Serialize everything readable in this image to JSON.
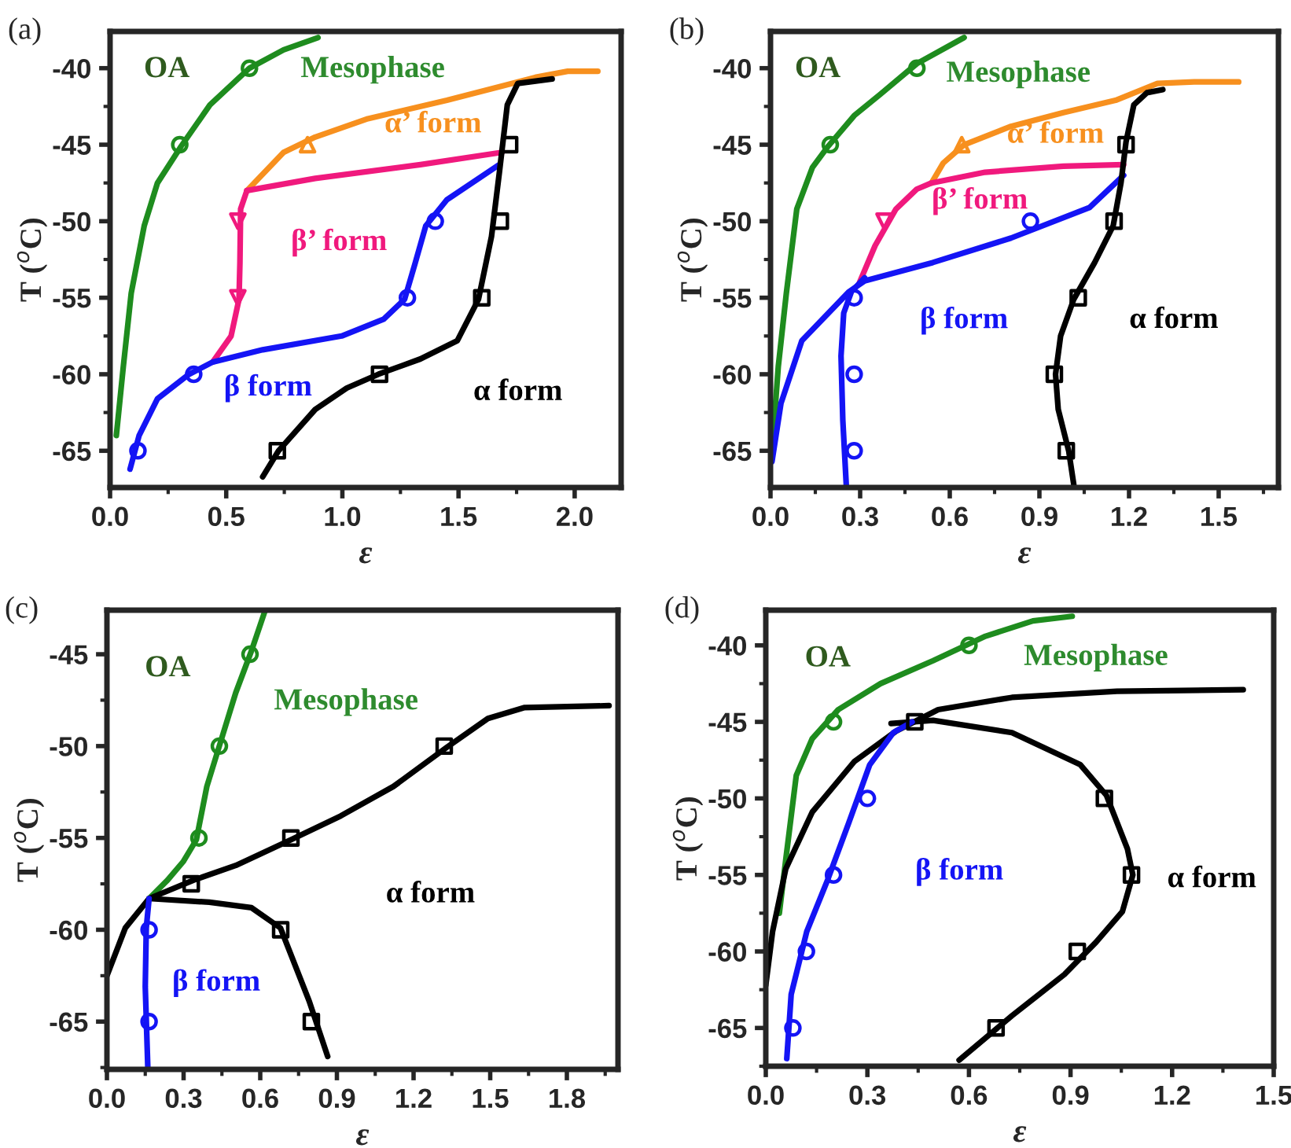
{
  "chart_data": [
    {
      "type": "line",
      "title": "(a)",
      "xlabel": "ε",
      "ylabel": "T ($^{o}$C)",
      "xlim": [
        0,
        2.2
      ],
      "ylim": [
        -67.4,
        -37.6
      ],
      "xticks": [
        {
          "value": 0,
          "label": "0.0"
        },
        0.5,
        {
          "value": 1,
          "label": "1.0"
        },
        1.5,
        {
          "value": 2,
          "label": "2.0"
        }
      ],
      "yticks": [
        -65,
        -60,
        -55,
        -50,
        -45,
        -40
      ],
      "series": [
        {
          "type": "line",
          "color": "#1e8c1e",
          "x": [
            0.027,
            0.057,
            0.091,
            0.147,
            0.204,
            0.306,
            0.43,
            0.6,
            0.747,
            0.895
          ],
          "values": [
            -64.0,
            -59.5,
            -54.7,
            -50.3,
            -47.5,
            -45.1,
            -42.4,
            -40.0,
            -38.8,
            -38.0
          ]
        },
        {
          "type": "scatter",
          "marker": "circle",
          "color": "#1e8c1e",
          "x": [
            0.3,
            0.6
          ],
          "values": [
            -45,
            -40
          ]
        },
        {
          "type": "line",
          "color": "#f7901e",
          "x": [
            0.589,
            0.747,
            0.883,
            1.11,
            1.45,
            1.68,
            1.83,
            1.97,
            2.1
          ],
          "values": [
            -48.0,
            -45.5,
            -44.5,
            -43.3,
            -42.1,
            -41.2,
            -40.6,
            -40.2,
            -40.2
          ]
        },
        {
          "type": "scatter",
          "marker": "triangle",
          "color": "#f7901e",
          "x": [
            0.85
          ],
          "values": [
            -45
          ]
        },
        {
          "type": "line",
          "color": "#f0197d",
          "x": [
            0.589,
            0.883,
            1.336,
            1.687
          ],
          "values": [
            -48.0,
            -47.2,
            -46.3,
            -45.5
          ]
        },
        {
          "type": "line",
          "color": "#f0197d",
          "x": [
            0.589,
            0.562,
            0.559,
            0.555,
            0.521,
            0.442
          ],
          "values": [
            -48.0,
            -49.2,
            -52.7,
            -55.1,
            -57.5,
            -59.2
          ]
        },
        {
          "type": "scatter",
          "marker": "triangle_down",
          "color": "#f0197d",
          "x": [
            0.55,
            0.55
          ],
          "values": [
            -50,
            -55
          ]
        },
        {
          "type": "line",
          "color": "#1414f5",
          "x": [
            0.086,
            0.125,
            0.204,
            0.34,
            0.442,
            0.657,
            0.997,
            1.178,
            1.268,
            1.314,
            1.359,
            1.45,
            1.676
          ],
          "values": [
            -66.2,
            -64.0,
            -61.6,
            -60.0,
            -59.2,
            -58.4,
            -57.5,
            -56.4,
            -55.1,
            -52.7,
            -50.3,
            -48.6,
            -46.3
          ]
        },
        {
          "type": "scatter",
          "marker": "circle",
          "color": "#1414f5",
          "x": [
            0.12,
            0.36,
            1.28,
            1.4
          ],
          "values": [
            -65,
            -60,
            -55,
            -50
          ]
        },
        {
          "type": "line",
          "color": "#000000",
          "x": [
            0.657,
            0.725,
            0.883,
            1.019,
            1.155,
            1.336,
            1.495,
            1.586,
            1.642,
            1.676,
            1.71,
            1.755,
            1.903
          ],
          "values": [
            -66.7,
            -65.0,
            -62.3,
            -60.9,
            -60.0,
            -59.0,
            -57.8,
            -55.1,
            -51.0,
            -46.8,
            -42.4,
            -41.0,
            -40.7
          ]
        },
        {
          "type": "scatter",
          "marker": "square",
          "color": "#000000",
          "x": [
            0.72,
            1.16,
            1.6,
            1.68,
            1.72
          ],
          "values": [
            -65,
            -60,
            -55,
            -50,
            -45
          ]
        }
      ],
      "annotations": [
        "OA",
        "Mesophase",
        "α’ form",
        "β’ form",
        "β form",
        "α form"
      ]
    },
    {
      "type": "line",
      "title": "(b)",
      "xlabel": "ε",
      "ylabel": "T ($^{o}$C)",
      "xlim": [
        0,
        1.7
      ],
      "ylim": [
        -67.4,
        -37.6
      ],
      "xticks": [
        {
          "value": 0,
          "label": "0.0"
        },
        0.3,
        0.6,
        0.9,
        1.2,
        1.5
      ],
      "yticks": [
        -65,
        -60,
        -55,
        -50,
        -45,
        -40
      ],
      "series": [
        {
          "type": "line",
          "color": "#1e8c1e",
          "x": [
            0.009,
            0.026,
            0.053,
            0.088,
            0.14,
            0.193,
            0.28,
            0.368,
            0.49,
            0.648
          ],
          "values": [
            -64.0,
            -59.5,
            -54.7,
            -49.2,
            -46.5,
            -45.1,
            -43.1,
            -41.7,
            -39.7,
            -38.0
          ]
        },
        {
          "type": "scatter",
          "marker": "circle",
          "color": "#1e8c1e",
          "x": [
            0.2,
            0.49
          ],
          "values": [
            -45,
            -40
          ]
        },
        {
          "type": "line",
          "color": "#f7901e",
          "x": [
            0.539,
            0.578,
            0.648,
            0.805,
            0.98,
            1.155,
            1.295,
            1.418,
            1.567
          ],
          "values": [
            -47.5,
            -46.2,
            -45.0,
            -43.8,
            -42.9,
            -42.1,
            -41.0,
            -40.9,
            -40.9
          ]
        },
        {
          "type": "scatter",
          "marker": "triangle",
          "color": "#f7901e",
          "x": [
            0.64
          ],
          "values": [
            -45
          ]
        },
        {
          "type": "line",
          "color": "#f0197d",
          "x": [
            0.298,
            0.35,
            0.42,
            0.49,
            0.539,
            0.718,
            0.98,
            1.182
          ],
          "values": [
            -54.0,
            -51.6,
            -49.2,
            -47.9,
            -47.5,
            -46.8,
            -46.4,
            -46.3
          ]
        },
        {
          "type": "scatter",
          "marker": "triangle_down",
          "color": "#f0197d",
          "x": [
            0.38
          ],
          "values": [
            -50
          ]
        },
        {
          "type": "line",
          "color": "#1414f5",
          "x": [
            0.005,
            0.035,
            0.105,
            0.263,
            0.315,
            0.543,
            0.805,
            1.068,
            1.182
          ],
          "values": [
            -65.7,
            -61.9,
            -57.8,
            -54.6,
            -53.9,
            -52.7,
            -51.1,
            -49.1,
            -47.0
          ]
        },
        {
          "type": "line",
          "color": "#1414f5",
          "x": [
            0.254,
            0.242,
            0.236,
            0.245,
            0.271,
            0.315
          ],
          "values": [
            -67.4,
            -63.0,
            -58.8,
            -56.0,
            -54.6,
            -53.7
          ]
        },
        {
          "type": "scatter",
          "marker": "circle",
          "color": "#1414f5",
          "x": [
            0.28,
            0.28,
            0.28,
            0.87
          ],
          "values": [
            -55,
            -60,
            -65,
            -50
          ]
        },
        {
          "type": "line",
          "color": "#000000",
          "x": [
            1.015,
            0.998,
            0.963,
            0.954,
            0.971,
            1.015,
            1.085,
            1.147,
            1.173,
            1.19,
            1.216,
            1.26,
            1.313
          ],
          "values": [
            -67.2,
            -65.0,
            -62.3,
            -60.0,
            -57.5,
            -55.1,
            -52.7,
            -50.3,
            -47.5,
            -44.8,
            -42.4,
            -41.6,
            -41.4
          ]
        },
        {
          "type": "scatter",
          "marker": "square",
          "color": "#000000",
          "x": [
            0.99,
            0.95,
            1.03,
            1.15,
            1.19
          ],
          "values": [
            -65,
            -60,
            -55,
            -50,
            -45
          ]
        }
      ],
      "annotations": [
        "OA",
        "Mesophase",
        "α’ form",
        "β’ form",
        "β form",
        "α form"
      ]
    },
    {
      "type": "line",
      "title": "(c)",
      "xlabel": "ε",
      "ylabel": "T ($^{o}$C)",
      "xlim": [
        0,
        2.0
      ],
      "ylim": [
        -67.6,
        -42.6
      ],
      "xticks": [
        {
          "value": 0,
          "label": "0.0"
        },
        0.3,
        0.6,
        0.9,
        1.2,
        1.5,
        1.8
      ],
      "yticks": [
        -65,
        -60,
        -55,
        -50,
        -45
      ],
      "series": [
        {
          "type": "line",
          "color": "#1e8c1e",
          "x": [
            0.165,
            0.237,
            0.298,
            0.35,
            0.391,
            0.442,
            0.504,
            0.566,
            0.617
          ],
          "values": [
            -58.3,
            -57.3,
            -56.3,
            -55.1,
            -52.2,
            -49.9,
            -47.1,
            -44.8,
            -42.7
          ]
        },
        {
          "type": "scatter",
          "marker": "circle",
          "color": "#1e8c1e",
          "x": [
            0.36,
            0.44,
            0.56
          ],
          "values": [
            -55,
            -50,
            -45
          ]
        },
        {
          "type": "line",
          "color": "#000000",
          "x": [
            0.165,
            0.339,
            0.504,
            0.72,
            0.915,
            1.121,
            1.327,
            1.491,
            1.635,
            1.965
          ],
          "values": [
            -58.3,
            -57.3,
            -56.5,
            -55.1,
            -53.8,
            -52.2,
            -50.1,
            -48.5,
            -47.9,
            -47.8
          ]
        },
        {
          "type": "line",
          "color": "#000000",
          "x": [
            0.0,
            0.072,
            0.165,
            0.401,
            0.566,
            0.679,
            0.792,
            0.864
          ],
          "values": [
            -62.5,
            -59.9,
            -58.3,
            -58.5,
            -58.8,
            -59.9,
            -63.9,
            -66.9
          ]
        },
        {
          "type": "scatter",
          "marker": "square",
          "color": "#000000",
          "x": [
            0.33,
            0.72,
            1.32,
            0.68,
            0.8
          ],
          "values": [
            -57.5,
            -55,
            -50,
            -60,
            -65
          ]
        },
        {
          "type": "line",
          "color": "#1414f5",
          "x": [
            0.165,
            0.154,
            0.15,
            0.16
          ],
          "values": [
            -58.3,
            -59.9,
            -63.1,
            -67.5
          ]
        },
        {
          "type": "scatter",
          "marker": "circle",
          "color": "#1414f5",
          "x": [
            0.165,
            0.165
          ],
          "values": [
            -60,
            -65
          ]
        }
      ],
      "annotations": [
        "OA",
        "Mesophase",
        "α form",
        "β form"
      ]
    },
    {
      "type": "line",
      "title": "(d)",
      "xlabel": "ε",
      "ylabel": "T ($^{o}$C)",
      "xlim": [
        0,
        1.5
      ],
      "ylim": [
        -67.5,
        -37.7
      ],
      "xticks": [
        {
          "value": 0,
          "label": "0.0"
        },
        0.3,
        0.6,
        0.9,
        1.2,
        1.5
      ],
      "yticks": [
        -65,
        -60,
        -55,
        -50,
        -45,
        -40
      ],
      "series": [
        {
          "type": "line",
          "color": "#1e8c1e",
          "x": [
            0.04,
            0.059,
            0.09,
            0.137,
            0.214,
            0.339,
            0.494,
            0.649,
            0.789,
            0.905
          ],
          "values": [
            -57.5,
            -54.0,
            -48.5,
            -46.1,
            -44.2,
            -42.5,
            -41.0,
            -39.4,
            -38.4,
            -38.1
          ]
        },
        {
          "type": "scatter",
          "marker": "circle",
          "color": "#1e8c1e",
          "x": [
            0.2,
            0.6
          ],
          "values": [
            -45,
            -40
          ]
        },
        {
          "type": "line",
          "color": "#000000",
          "x": [
            0.0,
            0.02,
            0.059,
            0.137,
            0.261,
            0.385,
            0.509,
            0.727,
            1.037,
            1.41
          ],
          "values": [
            -62.2,
            -58.7,
            -54.6,
            -50.9,
            -47.6,
            -45.6,
            -44.2,
            -43.4,
            -43.0,
            -42.9
          ]
        },
        {
          "type": "line",
          "color": "#000000",
          "x": [
            0.37,
            0.494,
            0.727,
            0.929,
            1.006,
            1.068,
            1.084,
            1.053,
            0.975,
            0.882,
            0.727,
            0.571
          ],
          "values": [
            -45.1,
            -44.9,
            -45.7,
            -47.8,
            -49.8,
            -53.3,
            -55.0,
            -57.4,
            -59.4,
            -61.5,
            -64.2,
            -67.1
          ]
        },
        {
          "type": "scatter",
          "marker": "square",
          "color": "#000000",
          "x": [
            0.44,
            1.0,
            1.08,
            0.92,
            0.68
          ],
          "values": [
            -45,
            -50,
            -55,
            -60,
            -65
          ]
        },
        {
          "type": "line",
          "color": "#1414f5",
          "x": [
            0.062,
            0.075,
            0.121,
            0.183,
            0.245,
            0.307,
            0.377,
            0.432
          ],
          "values": [
            -67.0,
            -62.8,
            -58.7,
            -55.3,
            -51.6,
            -47.8,
            -45.7,
            -45.0
          ]
        },
        {
          "type": "scatter",
          "marker": "circle",
          "color": "#1414f5",
          "x": [
            0.08,
            0.12,
            0.2,
            0.3
          ],
          "values": [
            -65,
            -60,
            -55,
            -50
          ]
        }
      ],
      "annotations": [
        "OA",
        "Mesophase",
        "β form",
        "α form"
      ]
    }
  ]
}
